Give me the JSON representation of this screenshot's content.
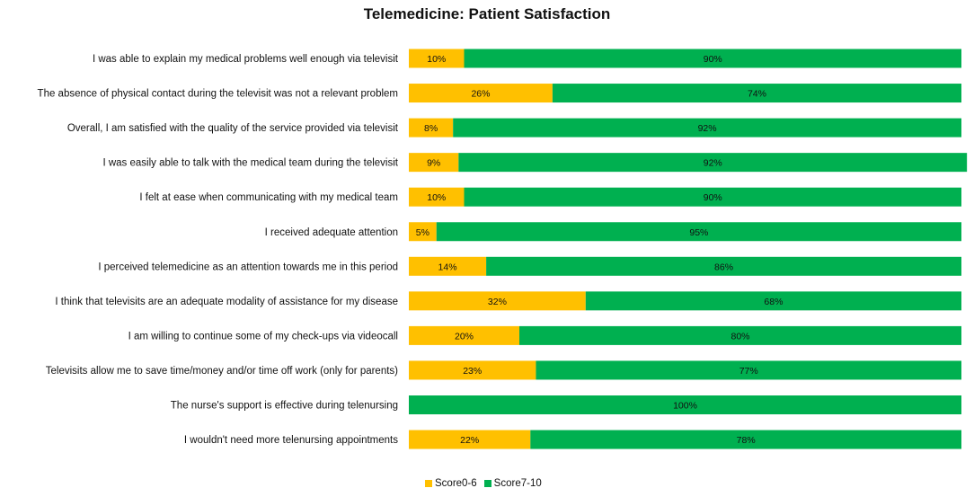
{
  "chart_data": {
    "type": "bar",
    "orientation": "horizontal",
    "stacked": true,
    "title": "Telemedicine: Patient Satisfaction",
    "xlabel": "",
    "ylabel": "",
    "xlim": [
      0,
      100
    ],
    "grid": false,
    "legend_position": "bottom",
    "categories": [
      "I was able to explain my medical problems well enough via televisit",
      "The absence of physical contact during the televisit was not a relevant problem",
      "Overall, I am satisfied with the quality of the service provided via televisit",
      "I was easily able to talk with the medical team during the televisit",
      "I felt at ease when communicating with my medical team",
      "I received adequate attention",
      "I perceived telemedicine as an attention towards me in this period",
      "I think that televisits are an adequate modality of assistance for my disease",
      "I am willing to continue some of my check-ups via videocall",
      "Televisits allow me to save time/money and/or time off work (only for parents)",
      "The nurse's support is effective during telenursing",
      "I wouldn't need more telenursing appointments"
    ],
    "series": [
      {
        "name": "Score0-6",
        "color": "#FFC000",
        "values": [
          10,
          26,
          8,
          9,
          10,
          5,
          14,
          32,
          20,
          23,
          0,
          22
        ],
        "labels": [
          "10%",
          "26%",
          "8%",
          "9%",
          "10%",
          "5%",
          "14%",
          "32%",
          "20%",
          "23%",
          "",
          "22%"
        ]
      },
      {
        "name": "Score7-10",
        "color": "#00B050",
        "values": [
          90,
          74,
          92,
          92,
          90,
          95,
          86,
          68,
          80,
          77,
          100,
          78
        ],
        "labels": [
          "90%",
          "74%",
          "92%",
          "92%",
          "90%",
          "95%",
          "86%",
          "68%",
          "80%",
          "77%",
          "100%",
          "78%"
        ]
      }
    ]
  }
}
